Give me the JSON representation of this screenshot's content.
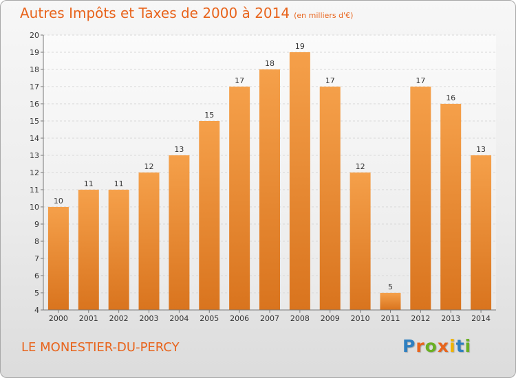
{
  "chart_data": {
    "type": "bar",
    "title": "Autres Impôts et Taxes de 2000 à 2014",
    "subtitle": "(en milliers d'€)",
    "categories": [
      "2000",
      "2001",
      "2002",
      "2003",
      "2004",
      "2005",
      "2006",
      "2007",
      "2008",
      "2009",
      "2010",
      "2011",
      "2012",
      "2013",
      "2014"
    ],
    "values": [
      10,
      11,
      11,
      12,
      13,
      15,
      17,
      18,
      19,
      17,
      12,
      5,
      17,
      16,
      13
    ],
    "ylim": [
      4,
      20
    ],
    "yticks": [
      4,
      5,
      6,
      7,
      8,
      9,
      10,
      11,
      12,
      13,
      14,
      15,
      16,
      17,
      18,
      19,
      20
    ],
    "grid": true,
    "bar_color": "#f5a04a",
    "bar_color_dark": "#d9741e"
  },
  "footer": {
    "commune": "LE MONESTIER-DU-PERCY",
    "logo_letters": [
      "P",
      "r",
      "o",
      "x",
      "i",
      "t",
      "i"
    ],
    "logo_colors": [
      "#2e7fc0",
      "#e8641c",
      "#6ab023",
      "#e8641c",
      "#f0b400",
      "#2e7fc0",
      "#6ab023"
    ]
  },
  "colors": {
    "accent": "#e8641c"
  }
}
